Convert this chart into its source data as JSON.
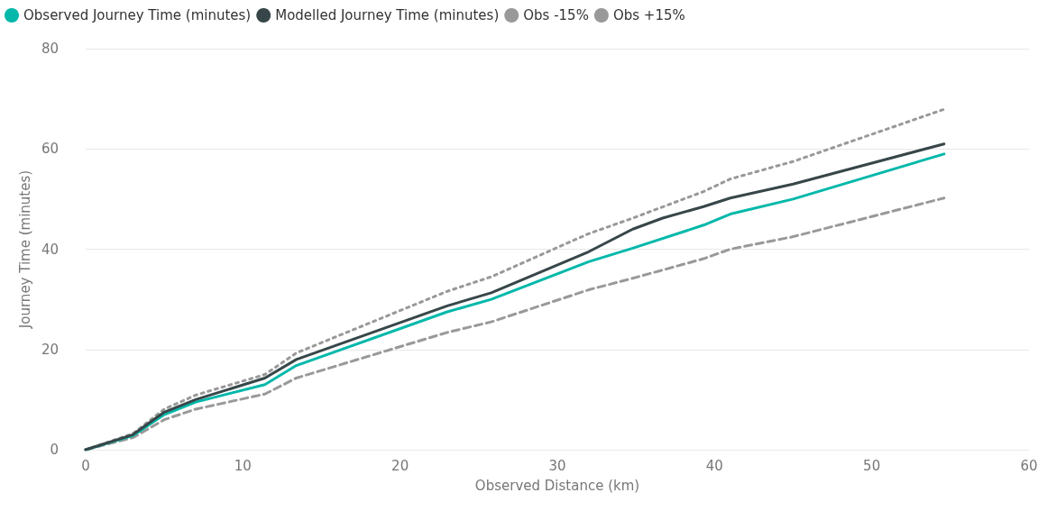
{
  "chart_data": {
    "type": "line",
    "xlabel": "Observed Distance (km)",
    "ylabel": "Journey Time (minutes)",
    "xlim": [
      0,
      60
    ],
    "xticks": [
      0,
      10,
      20,
      30,
      40,
      50,
      60
    ],
    "ylim": [
      0,
      80
    ],
    "yticks": [
      0,
      20,
      40,
      60,
      80
    ],
    "grid": "y",
    "legend": "top left",
    "marker": "none",
    "series": [
      {
        "name": "Observed Journey Time (minutes)",
        "color": "#01b8aa",
        "line_style": "solid",
        "x": [
          0,
          3,
          5,
          7,
          11.4,
          13.4,
          23,
          25.8,
          32,
          34.8,
          39.3,
          41,
          45,
          54.6
        ],
        "values": [
          0,
          2.8,
          7,
          9.5,
          13,
          16.8,
          27.5,
          30,
          37.5,
          40.2,
          44.8,
          47,
          50,
          59
        ]
      },
      {
        "name": "Modelled Journey Time (minutes)",
        "color": "#374649",
        "line_style": "solid",
        "x": [
          0,
          3,
          5,
          7,
          11.4,
          13.4,
          23,
          25.8,
          32,
          34.8,
          36.7,
          39.3,
          41,
          45,
          54.6
        ],
        "values": [
          0,
          3,
          7.5,
          10,
          14.3,
          18,
          28.7,
          31.3,
          39.5,
          44,
          46.2,
          48.5,
          50.2,
          53,
          61
        ]
      },
      {
        "name": "Obs -15%",
        "color": "#999999",
        "line_style": "dashed",
        "x": [
          0,
          3,
          5,
          7,
          11.4,
          13.4,
          23,
          25.8,
          32,
          34.8,
          39.3,
          41,
          45,
          54.6
        ],
        "values": [
          0,
          2.4,
          6,
          8.1,
          11.1,
          14.3,
          23.4,
          25.5,
          31.9,
          34.2,
          38.1,
          40,
          42.5,
          50.2
        ]
      },
      {
        "name": "Obs +15%",
        "color": "#999999",
        "line_style": "dotted",
        "x": [
          0,
          3,
          5,
          7,
          11.4,
          13.4,
          23,
          25.8,
          32,
          34.8,
          39.3,
          41,
          45,
          54.6
        ],
        "values": [
          0,
          3.2,
          8.1,
          10.9,
          15,
          19.3,
          31.6,
          34.5,
          43.1,
          46.2,
          51.5,
          54,
          57.5,
          67.9
        ]
      }
    ]
  }
}
